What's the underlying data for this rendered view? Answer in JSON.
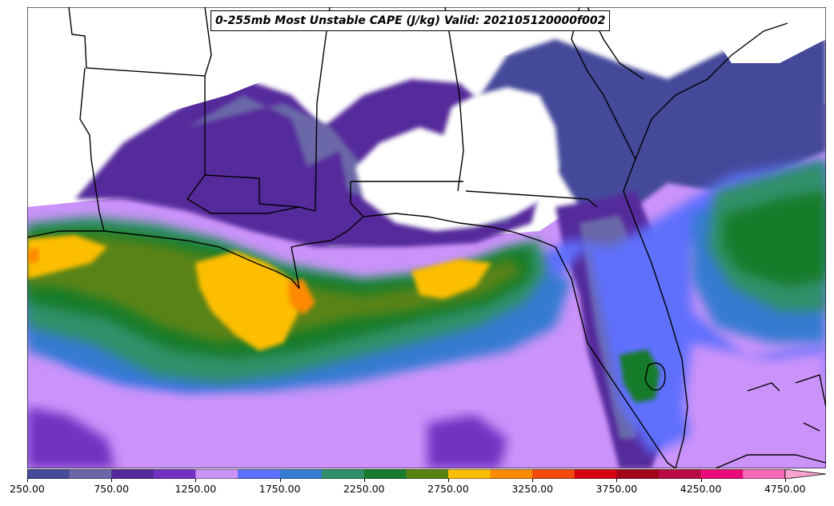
{
  "map": {
    "title": "0-255mb Most Unstable CAPE (J/kg) Valid: 202105120000f002",
    "variable": "Most Unstable CAPE",
    "units": "J/kg",
    "colorbar": {
      "levels": [
        250,
        500,
        750,
        1000,
        1250,
        1500,
        1750,
        2000,
        2250,
        2500,
        2750,
        3000,
        3250,
        3500,
        3750,
        4000,
        4250,
        4500,
        4750,
        5000
      ],
      "colors": [
        "#454a9a",
        "#6a67a8",
        "#55299b",
        "#7231c2",
        "#cb93fa",
        "#5e70fd",
        "#347bd1",
        "#30906a",
        "#167b2b",
        "#5a8314",
        "#fdbe04",
        "#fd8a03",
        "#f14a0c",
        "#d5000e",
        "#a1041b",
        "#b80b44",
        "#ea0b7b",
        "#f66ab5",
        "#fba3d0"
      ],
      "tick_labels": [
        "250.00",
        "750.00",
        "1250.00",
        "1750.00",
        "2250.00",
        "2750.00",
        "3250.00",
        "3750.00",
        "4250.00",
        "4750.00"
      ],
      "extend": "max"
    }
  }
}
